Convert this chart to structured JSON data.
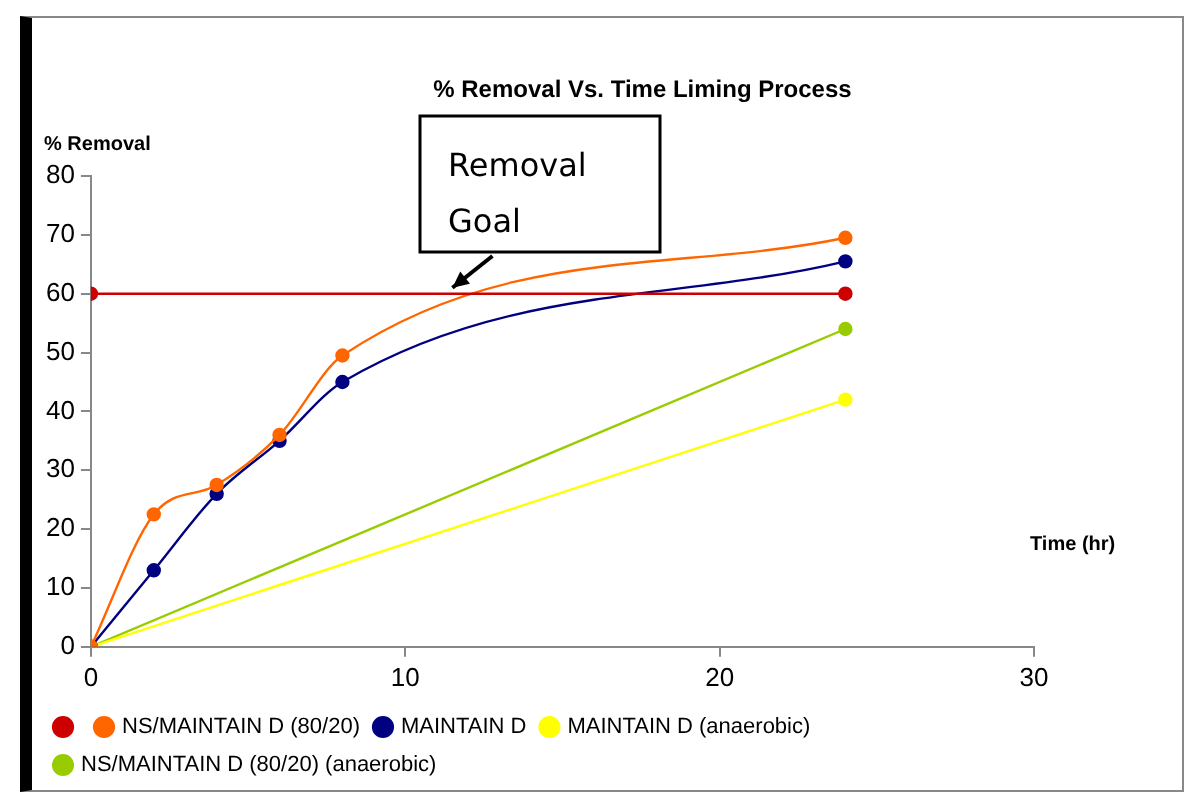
{
  "chart_data": {
    "type": "line",
    "title": "% Removal Vs. Time Liming Process",
    "xlabel": "Time (hr)",
    "ylabel": "% Removal",
    "xlim": [
      0,
      30
    ],
    "xticks": [
      0,
      10,
      20,
      30
    ],
    "ylim": [
      0,
      80
    ],
    "yticks": [
      0,
      10,
      20,
      30,
      40,
      50,
      60,
      70,
      80
    ],
    "grid": false,
    "legend": "bottom",
    "marker": "circle",
    "line_style": "solid",
    "annotations": [
      {
        "text": "Removal Goal",
        "x": 11.5,
        "y": 60
      }
    ],
    "series": [
      {
        "name": "NS/MAINTAIN D (80/20) (anaerobic)",
        "color": "#99cc00",
        "x": [
          0,
          24
        ],
        "values": [
          0,
          54
        ]
      },
      {
        "name": "MAINTAIN D (anaerobic)",
        "color": "#ffff00",
        "x": [
          0,
          24
        ],
        "values": [
          0,
          42
        ]
      },
      {
        "name": "MAINTAIN D",
        "color": "#000080",
        "x": [
          0,
          2,
          4,
          6,
          8,
          24
        ],
        "values": [
          0,
          13,
          26,
          35,
          45,
          65.5
        ]
      },
      {
        "name": "NS/MAINTAIN D (80/20)",
        "color": "#ff6600",
        "x": [
          0,
          2,
          4,
          6,
          8,
          24
        ],
        "values": [
          0,
          22.5,
          27.5,
          36,
          49.5,
          69.5
        ]
      },
      {
        "color": "#cc0000",
        "x": [
          0,
          24
        ],
        "values": [
          60,
          60
        ]
      }
    ]
  }
}
